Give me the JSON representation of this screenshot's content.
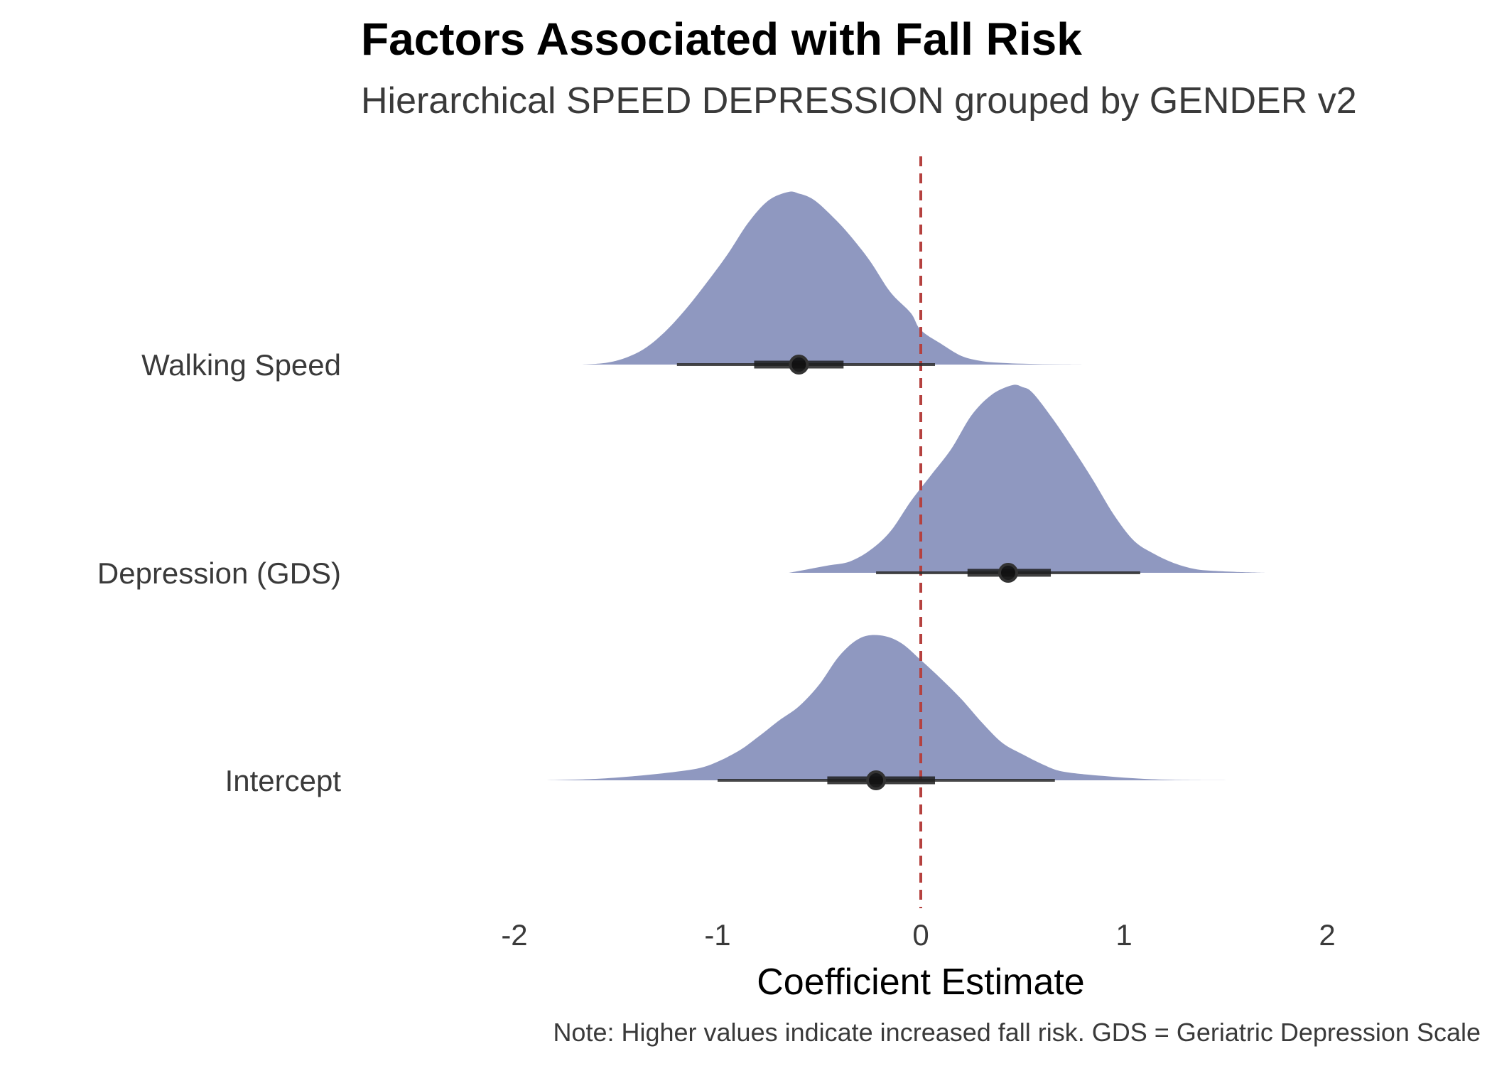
{
  "chart_data": {
    "type": "ridgeline",
    "title": "Factors Associated with Fall Risk",
    "subtitle": "Hierarchical SPEED DEPRESSION grouped by GENDER v2",
    "xlabel": "Coefficient Estimate",
    "note": "Note: Higher values indicate increased fall risk. GDS = Geriatric Depression Scale",
    "xlim": [
      -2.6,
      2.8
    ],
    "xticks": [
      -2,
      -1,
      0,
      1,
      2
    ],
    "xtick_labels": [
      "-2",
      "-1",
      "0",
      "1",
      "2"
    ],
    "reference_line": {
      "x": 0,
      "style": "dashed",
      "color": "#b5413f"
    },
    "fill_color": "#8f98c0",
    "grid": false,
    "categories": [
      "Walking Speed",
      "Depression (GDS)",
      "Intercept"
    ],
    "series": [
      {
        "name": "Walking Speed",
        "density_x": [
          -1.67,
          -1.55,
          -1.45,
          -1.35,
          -1.25,
          -1.15,
          -1.05,
          -0.95,
          -0.85,
          -0.75,
          -0.65,
          -0.6,
          -0.55,
          -0.5,
          -0.42,
          -0.35,
          -0.25,
          -0.15,
          -0.05,
          0.0,
          0.1,
          0.2,
          0.3,
          0.4,
          0.5,
          0.6,
          0.7,
          0.8
        ],
        "density_y": [
          0.0,
          0.01,
          0.04,
          0.1,
          0.2,
          0.33,
          0.48,
          0.64,
          0.82,
          0.95,
          1.0,
          0.99,
          0.97,
          0.93,
          0.84,
          0.75,
          0.6,
          0.42,
          0.3,
          0.2,
          0.12,
          0.05,
          0.02,
          0.01,
          0.005,
          0.002,
          0.001,
          0.0
        ],
        "median": -0.6,
        "interval_66": [
          -0.82,
          -0.38
        ],
        "interval_95": [
          -1.2,
          0.07
        ]
      },
      {
        "name": "Depression (GDS)",
        "density_x": [
          -0.65,
          -0.55,
          -0.45,
          -0.35,
          -0.25,
          -0.15,
          -0.05,
          0.05,
          0.15,
          0.25,
          0.35,
          0.45,
          0.5,
          0.55,
          0.65,
          0.75,
          0.85,
          0.95,
          1.05,
          1.15,
          1.25,
          1.35,
          1.45,
          1.55,
          1.7
        ],
        "density_y": [
          0.0,
          0.02,
          0.04,
          0.06,
          0.12,
          0.22,
          0.38,
          0.52,
          0.66,
          0.84,
          0.95,
          1.0,
          0.99,
          0.96,
          0.82,
          0.66,
          0.49,
          0.31,
          0.17,
          0.1,
          0.05,
          0.02,
          0.01,
          0.005,
          0.0
        ],
        "median": 0.43,
        "interval_66": [
          0.23,
          0.64
        ],
        "interval_95": [
          -0.22,
          1.08
        ]
      },
      {
        "name": "Intercept",
        "density_x": [
          -1.85,
          -1.6,
          -1.4,
          -1.2,
          -1.05,
          -0.9,
          -0.8,
          -0.7,
          -0.6,
          -0.5,
          -0.4,
          -0.3,
          -0.2,
          -0.1,
          0.0,
          0.1,
          0.2,
          0.3,
          0.4,
          0.5,
          0.6,
          0.7,
          0.9,
          1.1,
          1.3,
          1.58
        ],
        "density_y": [
          0.0,
          0.01,
          0.03,
          0.06,
          0.1,
          0.2,
          0.3,
          0.41,
          0.51,
          0.66,
          0.86,
          0.98,
          1.0,
          0.95,
          0.83,
          0.7,
          0.56,
          0.4,
          0.26,
          0.18,
          0.11,
          0.06,
          0.03,
          0.01,
          0.002,
          0.0
        ],
        "median": -0.22,
        "interval_66": [
          -0.46,
          0.07
        ],
        "interval_95": [
          -1.0,
          0.66
        ]
      }
    ]
  }
}
